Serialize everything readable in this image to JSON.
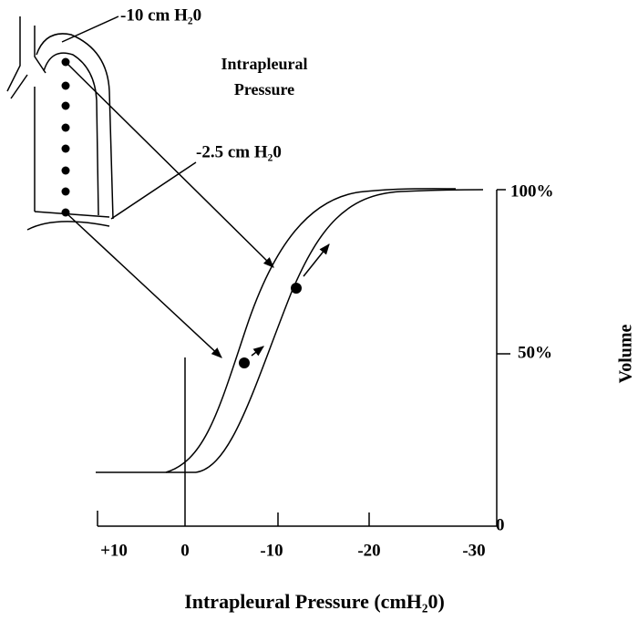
{
  "labels": {
    "apex_pressure": "-10 cm H₂0",
    "base_pressure": "-2.5 cm H₂0",
    "lung_caption": [
      "Intrapleural",
      "Pressure"
    ]
  },
  "x_axis": {
    "title": "Intrapleural Pressure (cmH₂0)",
    "ticks": [
      "+10",
      "0",
      "-10",
      "-20",
      "-30"
    ]
  },
  "y_axis": {
    "title": "Volume",
    "ticks": [
      "0",
      "50%",
      "100%"
    ]
  }
}
